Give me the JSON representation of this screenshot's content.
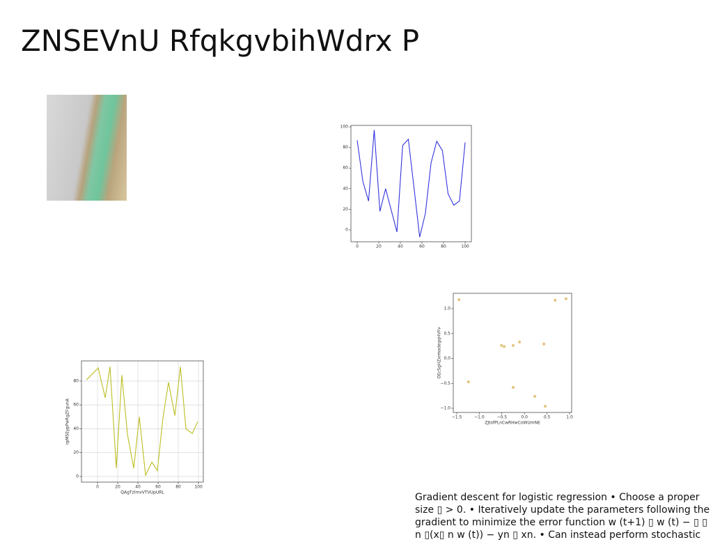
{
  "title": "ZNSEVnU RfqkgvbihWdrx P",
  "text": "Gradient descent for logistic regression • Choose a proper size ▯ > 0. • Iteratively update the parameters following the gradient to minimize the error function w (t+1) ▯ w (t) − ▯ ▯ n ▯(x▯ n w (t)) − yn ▯ xn. • Can instead perform stochastic",
  "chart_data": [
    {
      "type": "line",
      "x": [
        0,
        5.26,
        10.53,
        15.79,
        21.05,
        26.32,
        31.58,
        36.84,
        42.11,
        47.37,
        52.63,
        57.89,
        63.16,
        68.42,
        73.68,
        78.95,
        84.21,
        89.47,
        94.74,
        100
      ],
      "series": [
        {
          "color": "#3333dd",
          "values": [
            87,
            47,
            28,
            97,
            18,
            40,
            19,
            -2,
            82,
            88,
            41,
            -7,
            16,
            65,
            86,
            77,
            35,
            24,
            28,
            85
          ]
        }
      ],
      "xlim": [
        -5.8,
        105.8
      ],
      "ylim": [
        -11.5,
        101.4
      ],
      "xticks": [
        0,
        20,
        40,
        60,
        80,
        100
      ],
      "yticks": [
        0,
        20,
        40,
        60,
        80,
        100
      ],
      "grid": false
    },
    {
      "type": "scatter",
      "x_label": "ZJtofPLnCwRHwCoWUmNE",
      "y_label": "OEcSgHZxrmadegqHVFv",
      "x": [
        -1.45,
        -1.24,
        -0.51,
        -0.45,
        -0.25,
        -0.25,
        -0.11,
        0.23,
        0.43,
        0.46,
        0.68,
        0.92
      ],
      "series": [
        {
          "color": "#e3c47e",
          "values": [
            1.18,
            -0.47,
            0.26,
            0.24,
            0.26,
            -0.58,
            0.33,
            -0.76,
            0.29,
            -0.96,
            1.17,
            1.2
          ]
        }
      ],
      "xlim": [
        -1.577,
        1.046
      ],
      "ylim": [
        -1.084,
        1.308
      ],
      "xticks": [
        {
          "value": -1.5,
          "label": "−1.5"
        },
        {
          "value": -1.0,
          "label": "−1.0"
        },
        {
          "value": -0.5,
          "label": "−0.5"
        },
        {
          "value": 0,
          "label": "0.0"
        },
        {
          "value": 0.5,
          "label": "0.5"
        },
        {
          "value": 1,
          "label": "1.0"
        }
      ],
      "yticks": [
        {
          "value": -1,
          "label": "−1.0"
        },
        {
          "value": -0.5,
          "label": "−0.5"
        },
        {
          "value": 0,
          "label": "0.0"
        },
        {
          "value": 0.5,
          "label": "0.5"
        },
        {
          "value": 1,
          "label": "1.0"
        }
      ],
      "grid": false
    },
    {
      "type": "line",
      "x_label": "QAgTzlmvVTVUpURL",
      "y_label": "rpMSEypPwRgZFgunA",
      "x": [
        -11,
        0.7,
        7.6,
        12.4,
        18.6,
        24.1,
        29.7,
        35.9,
        41.4,
        47.6,
        53.8,
        59.3,
        64.8,
        70.3,
        76.6,
        82.1,
        87.6,
        93.8,
        99.3
      ],
      "series": [
        {
          "color": "#bcbd22",
          "values": [
            81,
            91,
            66,
            92,
            7,
            85,
            35,
            7,
            50,
            1,
            12,
            5,
            49,
            79,
            51,
            92,
            40,
            36,
            46
          ]
        }
      ],
      "xlim": [
        -15.9,
        104.8
      ],
      "ylim": [
        -4.7,
        96.9
      ],
      "xticks": [
        0,
        20,
        40,
        60,
        80,
        100
      ],
      "yticks": [
        0,
        20,
        40,
        60,
        80
      ],
      "grid": true
    }
  ]
}
